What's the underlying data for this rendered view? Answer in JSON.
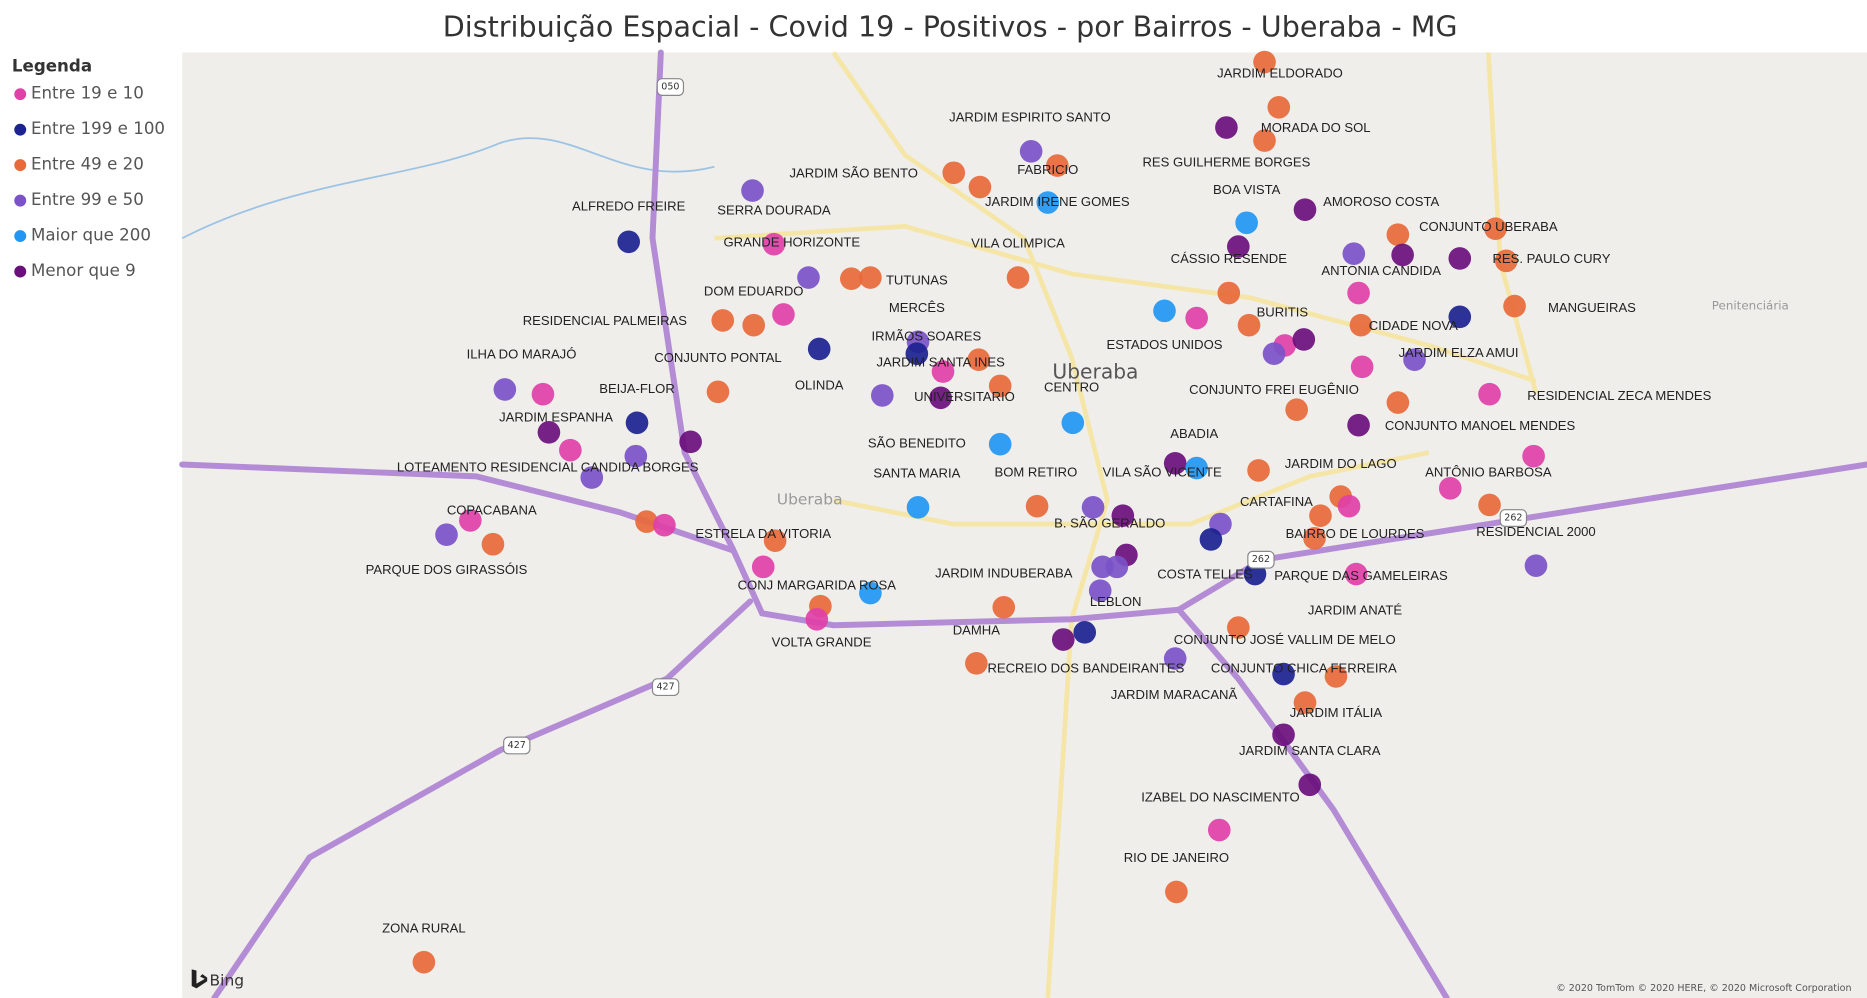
{
  "title": "Distribuição Espacial - Covid 19 - Positivos - por Bairros - Uberaba - MG",
  "legend": {
    "title": "Legenda",
    "items": [
      {
        "label": "Entre 19 e 10",
        "color": "#e040a8"
      },
      {
        "label": "Entre 199 e 100",
        "color": "#1c2290"
      },
      {
        "label": "Entre 49 e 20",
        "color": "#e8693a"
      },
      {
        "label": "Entre 99 e 50",
        "color": "#7b52c8"
      },
      {
        "label": "Maior que 200",
        "color": "#2196f3"
      },
      {
        "label": "Menor que 9",
        "color": "#6a0f7c"
      }
    ]
  },
  "labels": [
    "JARDIM ELDORADO",
    "JARDIM ESPIRITO SANTO",
    "MORADA DO SOL",
    "RES GUILHERME BORGES",
    "FABRICIO",
    "JARDIM SÃO BENTO",
    "BOA VISTA",
    "JARDIM IRENE GOMES",
    "AMOROSO COSTA",
    "ALFREDO FREIRE",
    "SERRA DOURADA",
    "CONJUNTO UBERABA",
    "GRANDE HORIZONTE",
    "VILA OLIMPICA",
    "CÁSSIO RESENDE",
    "RES. PAULO CURY",
    "ANTONIA CANDIDA",
    "TUTUNAS",
    "DOM EDUARDO",
    "MERCÊS",
    "BURITIS",
    "MANGUEIRAS",
    "RESIDENCIAL PALMEIRAS",
    "CIDADE NOVA",
    "IRMÃOS SOARES",
    "ESTADOS UNIDOS",
    "JARDIM ELZA AMUI",
    "ILHA DO MARAJÓ",
    "CONJUNTO PONTAL",
    "JARDIM SANTA INES",
    "OLINDA",
    "BEIJA-FLOR",
    "CENTRO",
    "CONJUNTO FREI EUGÊNIO",
    "RESIDENCIAL ZECA MENDES",
    "UNIVERSITARIO",
    "JARDIM ESPANHA",
    "CONJUNTO MANOEL MENDES",
    "ABADIA",
    "SÃO BENEDITO",
    "LOTEAMENTO RESIDENCIAL CANDIDA BORGES",
    "JARDIM DO LAGO",
    "ANTÔNIO BARBOSA",
    "SANTA MARIA",
    "BOM RETIRO",
    "VILA SÃO VICENTE",
    "CARTAFINA",
    "COPACABANA",
    "B. SÃO GERALDO",
    "ESTRELA DA VITORIA",
    "BAIRRO DE LOURDES",
    "RESIDENCIAL 2000",
    "PARQUE DOS GIRASSÓIS",
    "JARDIM INDUBERABA",
    "COSTA TELLES",
    "PARQUE DAS GAMELEIRAS",
    "CONJ MARGARIDA ROSA",
    "LEBLON",
    "JARDIM ANATÉ",
    "DAMHA",
    "VOLTA GRANDE",
    "CONJUNTO JOSÉ VALLIM DE MELO",
    "RECREIO DOS BANDEIRANTES",
    "CONJUNTO CHICA FERREIRA",
    "JARDIM MARACANÃ",
    "JARDIM ITÁLIA",
    "JARDIM SANTA CLARA",
    "IZABEL DO NASCIMENTO",
    "RIO DE JANEIRO",
    "ZONA RURAL"
  ],
  "map_text": {
    "city": "Uberaba",
    "penitentiary": "Penitenciária",
    "bing": "Bing",
    "attribution": "© 2020 TomTom © 2020 HERE, © 2020 Microsoft Corporation",
    "shields": [
      "050",
      "427",
      "427",
      "262",
      "262"
    ]
  }
}
